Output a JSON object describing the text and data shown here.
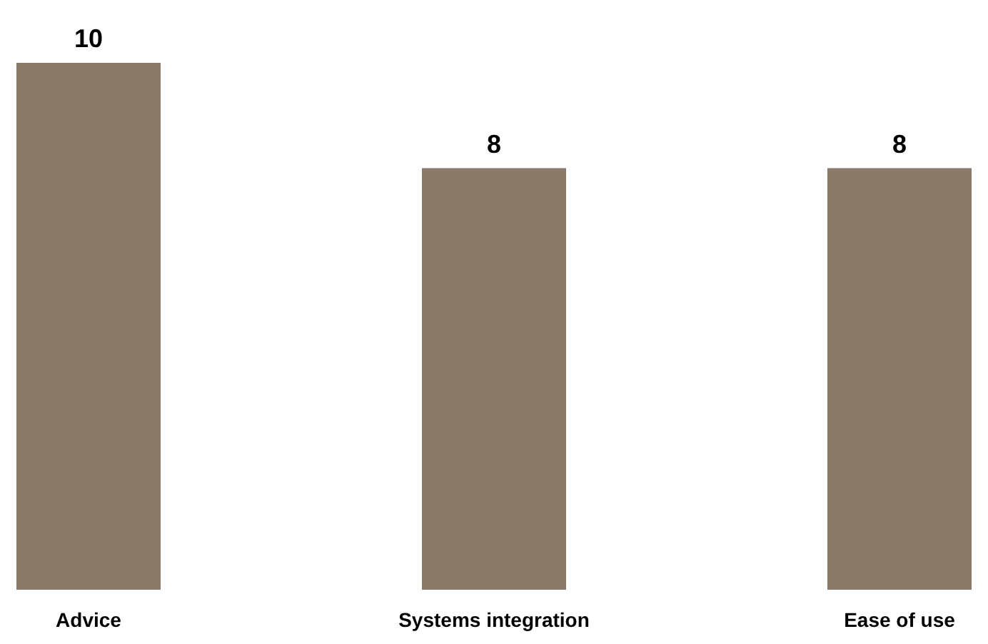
{
  "chart_data": {
    "type": "bar",
    "categories": [
      "Advice",
      "Systems integration",
      "Ease of use"
    ],
    "values": [
      10,
      8,
      8
    ],
    "color": "#8b7a69",
    "data_labels": true
  }
}
